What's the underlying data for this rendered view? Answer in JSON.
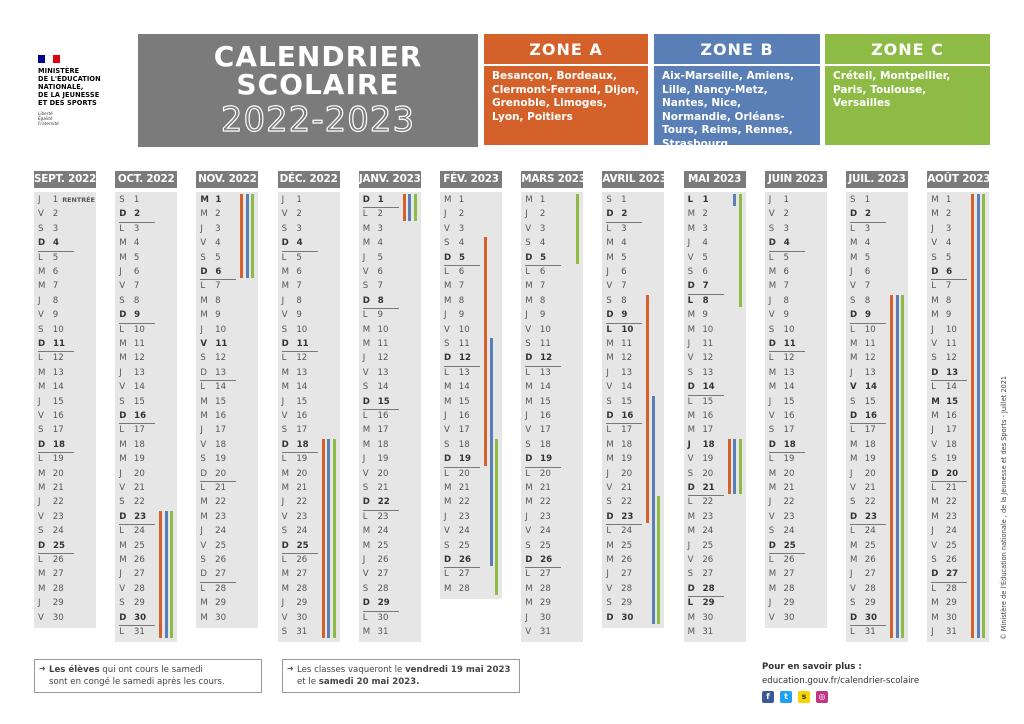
{
  "logo": {
    "name_lines": [
      "MINISTÈRE",
      "DE L'ÉDUCATION",
      "NATIONALE,",
      "DE LA JEUNESSE",
      "ET DES SPORTS"
    ],
    "motto": [
      "Liberté",
      "Égalité",
      "Fraternité"
    ],
    "flag_colors": [
      "#000091",
      "#ffffff",
      "#e1000f"
    ]
  },
  "title": {
    "line1": "CALENDRIER",
    "line2": "SCOLAIRE",
    "line3": "2022-2023",
    "bg": "#7b7b7b"
  },
  "zones": [
    {
      "label": "ZONE A",
      "color": "#d4602a",
      "cities": "Besançon, Bordeaux, Clermont-Ferrand, Dijon, Grenoble, Limoges, Lyon, Poitiers"
    },
    {
      "label": "ZONE B",
      "color": "#5a7fb6",
      "cities": "Aix-Marseille, Amiens, Lille, Nancy-Metz, Nantes, Nice, Normandie, Orléans-Tours, Reims, Rennes, Strasbourg"
    },
    {
      "label": "ZONE C",
      "color": "#8dbb46",
      "cities": "Créteil, Montpellier, Paris, Toulouse, Versailles"
    }
  ],
  "months": [
    {
      "label": "SEPT. 2022",
      "start": 4,
      "days": 30,
      "bold": [
        4,
        11,
        18,
        25
      ],
      "sep": [
        4,
        11,
        18,
        25
      ],
      "rentree": "RENTRÉE",
      "bars": []
    },
    {
      "label": "OCT. 2022",
      "start": 6,
      "days": 31,
      "bold": [
        2,
        9,
        16,
        23,
        30
      ],
      "sep": [
        2,
        9,
        16,
        23,
        30
      ],
      "bars": [
        {
          "zone": "A",
          "from": 23,
          "to": 31
        },
        {
          "zone": "B",
          "from": 23,
          "to": 31
        },
        {
          "zone": "C",
          "from": 23,
          "to": 31
        }
      ]
    },
    {
      "label": "NOV. 2022",
      "start": 2,
      "days": 30,
      "bold": [
        1,
        6,
        11
      ],
      "sep": [
        6,
        13,
        20,
        27
      ],
      "bars": [
        {
          "zone": "A",
          "from": 1,
          "to": 6
        },
        {
          "zone": "B",
          "from": 1,
          "to": 6
        },
        {
          "zone": "C",
          "from": 1,
          "to": 6
        }
      ]
    },
    {
      "label": "DÉC. 2022",
      "start": 4,
      "days": 31,
      "bold": [
        4,
        11,
        18,
        25
      ],
      "sep": [
        4,
        11,
        18,
        25
      ],
      "bars": [
        {
          "zone": "A",
          "from": 18,
          "to": 31
        },
        {
          "zone": "B",
          "from": 18,
          "to": 31
        },
        {
          "zone": "C",
          "from": 18,
          "to": 31
        }
      ]
    },
    {
      "label": "JANV. 2023",
      "start": 0,
      "days": 31,
      "bold": [
        1,
        8,
        15,
        22,
        29
      ],
      "sep": [
        1,
        8,
        15,
        22,
        29
      ],
      "bars": [
        {
          "zone": "A",
          "from": 1,
          "to": 2
        },
        {
          "zone": "B",
          "from": 1,
          "to": 2
        },
        {
          "zone": "C",
          "from": 1,
          "to": 2
        }
      ]
    },
    {
      "label": "FÉV. 2023",
      "start": 3,
      "days": 28,
      "bold": [
        5,
        12,
        19,
        26
      ],
      "sep": [
        5,
        12,
        19,
        26
      ],
      "bars": [
        {
          "zone": "A",
          "from": 4,
          "to": 19
        },
        {
          "zone": "B",
          "from": 11,
          "to": 26
        },
        {
          "zone": "C",
          "from": 18,
          "to": 28
        }
      ]
    },
    {
      "label": "MARS 2023",
      "start": 3,
      "days": 31,
      "bold": [
        5,
        12,
        19,
        26
      ],
      "sep": [
        5,
        12,
        19,
        26
      ],
      "bars": [
        {
          "zone": "C",
          "from": 1,
          "to": 5
        }
      ]
    },
    {
      "label": "AVRIL 2023",
      "start": 6,
      "days": 30,
      "bold": [
        2,
        9,
        10,
        16,
        23,
        30
      ],
      "sep": [
        2,
        9,
        16,
        23,
        30
      ],
      "bars": [
        {
          "zone": "A",
          "from": 8,
          "to": 23
        },
        {
          "zone": "B",
          "from": 15,
          "to": 30
        },
        {
          "zone": "C",
          "from": 22,
          "to": 30
        }
      ]
    },
    {
      "label": "MAI 2023",
      "start": 1,
      "days": 31,
      "bold": [
        1,
        7,
        8,
        14,
        18,
        21,
        28,
        29
      ],
      "sep": [
        7,
        14,
        21,
        28
      ],
      "bars": [
        {
          "zone": "B",
          "from": 1,
          "to": 1
        },
        {
          "zone": "C",
          "from": 1,
          "to": 8
        },
        {
          "zone": "A",
          "from": 18,
          "to": 21
        },
        {
          "zone": "B",
          "from": 18,
          "to": 21
        },
        {
          "zone": "C",
          "from": 18,
          "to": 21
        }
      ]
    },
    {
      "label": "JUIN 2023",
      "start": 4,
      "days": 30,
      "bold": [
        4,
        11,
        18,
        25
      ],
      "sep": [
        4,
        11,
        18,
        25
      ],
      "bars": []
    },
    {
      "label": "JUIL. 2023",
      "start": 6,
      "days": 31,
      "bold": [
        2,
        9,
        14,
        16,
        23,
        30
      ],
      "sep": [
        2,
        9,
        16,
        23,
        30
      ],
      "bars": [
        {
          "zone": "A",
          "from": 8,
          "to": 31
        },
        {
          "zone": "B",
          "from": 8,
          "to": 31
        },
        {
          "zone": "C",
          "from": 8,
          "to": 31
        }
      ]
    },
    {
      "label": "AOÛT 2023",
      "start": 2,
      "days": 31,
      "bold": [
        6,
        13,
        15,
        20,
        27
      ],
      "sep": [
        6,
        13,
        20,
        27
      ],
      "bars": [
        {
          "zone": "A",
          "from": 1,
          "to": 31
        },
        {
          "zone": "B",
          "from": 1,
          "to": 31
        },
        {
          "zone": "C",
          "from": 1,
          "to": 31
        }
      ]
    }
  ],
  "weekday_letters": [
    "D",
    "L",
    "M",
    "M",
    "J",
    "V",
    "S"
  ],
  "notes": {
    "left": {
      "strong": "Les élèves",
      "rest1": " qui ont cours le samedi",
      "rest2": "sont en congé le samedi après les cours."
    },
    "right": {
      "t1": "Les classes vaqueront le ",
      "s1": "vendredi 19 mai 2023",
      "t2": "et le ",
      "s2": "samedi 20 mai 2023."
    }
  },
  "more": {
    "label": "Pour en savoir plus :",
    "url": "education.gouv.fr/calendrier-scolaire",
    "icons": [
      "facebook-icon",
      "twitter-icon",
      "snapchat-icon",
      "instagram-icon"
    ]
  },
  "copyright": "© Ministère de l'Éducation nationale , de la Jeunesse et des Sports - Juillet 2021"
}
